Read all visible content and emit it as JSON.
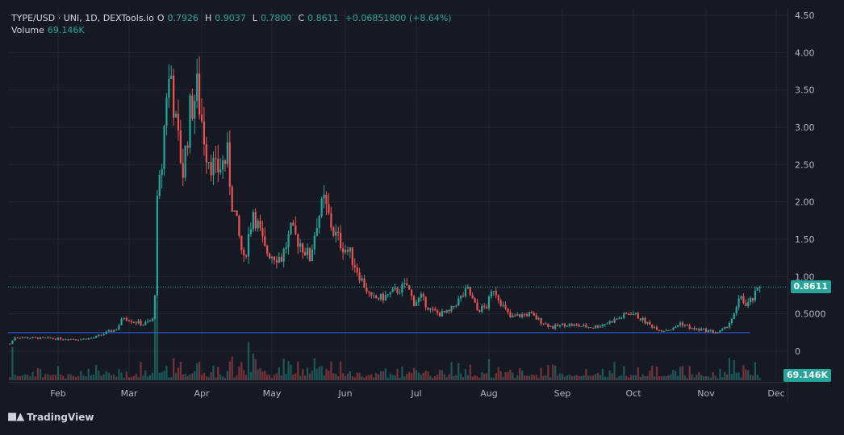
{
  "legend": {
    "symbol": "TYPE/USD · UNI, 1D, DEXTools.io",
    "open_label": "O",
    "open": "0.7926",
    "high_label": "H",
    "high": "0.9037",
    "low_label": "L",
    "low": "0.7800",
    "close_label": "C",
    "close": "0.8611",
    "change": "+0.06851800 (+8.64%)",
    "volume_label": "Volume",
    "volume": "69.146K"
  },
  "price_tag": "0.8611",
  "volume_tag": "69.146K",
  "brand": "TradingView",
  "colors": {
    "background": "#151924",
    "grid": "#242833",
    "up": "#26a69a",
    "down": "#ef5350",
    "baseline": "#2962ff"
  },
  "chart_data": {
    "type": "candlestick",
    "x_axis_labels": [
      "Feb",
      "Mar",
      "Apr",
      "May",
      "Jun",
      "Jul",
      "Aug",
      "Sep",
      "Oct",
      "Nov",
      "Dec"
    ],
    "y_axis_labels": [
      "4.50",
      "4.00",
      "3.50",
      "3.00",
      "2.50",
      "2.00",
      "1.50",
      "1.00",
      "0.5000",
      "0"
    ],
    "ylim": [
      0,
      4.5
    ],
    "horizontal_line": 0.25,
    "last_price": 0.8611,
    "anchors": [
      {
        "date": "Jan 13",
        "close": 0.1
      },
      {
        "date": "Jan 15",
        "close": 0.19
      },
      {
        "date": "Jan 20",
        "close": 0.18
      },
      {
        "date": "Feb 10",
        "close": 0.16
      },
      {
        "date": "Feb 15",
        "close": 0.18
      },
      {
        "date": "Feb 24",
        "close": 0.3
      },
      {
        "date": "Feb 27",
        "close": 0.46
      },
      {
        "date": "Mar 3",
        "close": 0.4
      },
      {
        "date": "Mar 7",
        "close": 0.36
      },
      {
        "date": "Mar 11",
        "close": 0.42
      },
      {
        "date": "Mar 12",
        "close": 0.8
      },
      {
        "date": "Mar 13",
        "close": 1.95
      },
      {
        "date": "Mar 15",
        "close": 2.5
      },
      {
        "date": "Mar 17",
        "close": 3.5
      },
      {
        "date": "Mar 19",
        "close": 3.7
      },
      {
        "date": "Mar 21",
        "close": 3.0
      },
      {
        "date": "Mar 24",
        "close": 2.4
      },
      {
        "date": "Mar 27",
        "close": 3.2
      },
      {
        "date": "Mar 30",
        "close": 3.5
      },
      {
        "date": "Apr 3",
        "close": 2.7
      },
      {
        "date": "Apr 7",
        "close": 2.4
      },
      {
        "date": "Apr 12",
        "close": 2.6
      },
      {
        "date": "Apr 14",
        "close": 2.0
      },
      {
        "date": "Apr 19",
        "close": 1.2
      },
      {
        "date": "Apr 23",
        "close": 1.9
      },
      {
        "date": "Apr 28",
        "close": 1.35
      },
      {
        "date": "May 1",
        "close": 1.3
      },
      {
        "date": "May 5",
        "close": 1.25
      },
      {
        "date": "May 9",
        "close": 1.6
      },
      {
        "date": "May 13",
        "close": 1.45
      },
      {
        "date": "May 17",
        "close": 1.25
      },
      {
        "date": "May 20",
        "close": 1.75
      },
      {
        "date": "May 23",
        "close": 2.0
      },
      {
        "date": "May 27",
        "close": 1.6
      },
      {
        "date": "May 30",
        "close": 1.45
      },
      {
        "date": "Jun 3",
        "close": 1.3
      },
      {
        "date": "Jun 8",
        "close": 0.95
      },
      {
        "date": "Jun 12",
        "close": 0.7
      },
      {
        "date": "Jun 17",
        "close": 0.72
      },
      {
        "date": "Jun 22",
        "close": 0.8
      },
      {
        "date": "Jun 27",
        "close": 0.88
      },
      {
        "date": "Jun 30",
        "close": 0.65
      },
      {
        "date": "Jul 3",
        "close": 0.72
      },
      {
        "date": "Jul 7",
        "close": 0.55
      },
      {
        "date": "Jul 11",
        "close": 0.5
      },
      {
        "date": "Jul 15",
        "close": 0.52
      },
      {
        "date": "Jul 18",
        "close": 0.65
      },
      {
        "date": "Jul 23",
        "close": 0.82
      },
      {
        "date": "Jul 27",
        "close": 0.55
      },
      {
        "date": "Jul 31",
        "close": 0.6
      },
      {
        "date": "Aug 3",
        "close": 0.85
      },
      {
        "date": "Aug 7",
        "close": 0.6
      },
      {
        "date": "Aug 10",
        "close": 0.45
      },
      {
        "date": "Aug 14",
        "close": 0.48
      },
      {
        "date": "Aug 18",
        "close": 0.5
      },
      {
        "date": "Aug 24",
        "close": 0.38
      },
      {
        "date": "Aug 28",
        "close": 0.32
      },
      {
        "date": "Sep 2",
        "close": 0.36
      },
      {
        "date": "Sep 8",
        "close": 0.34
      },
      {
        "date": "Sep 14",
        "close": 0.32
      },
      {
        "date": "Sep 20",
        "close": 0.38
      },
      {
        "date": "Sep 26",
        "close": 0.46
      },
      {
        "date": "Sep 30",
        "close": 0.52
      },
      {
        "date": "Oct 3",
        "close": 0.46
      },
      {
        "date": "Oct 8",
        "close": 0.35
      },
      {
        "date": "Oct 13",
        "close": 0.28
      },
      {
        "date": "Oct 18",
        "close": 0.3
      },
      {
        "date": "Oct 21",
        "close": 0.38
      },
      {
        "date": "Oct 26",
        "close": 0.3
      },
      {
        "date": "Nov 1",
        "close": 0.28
      },
      {
        "date": "Nov 6",
        "close": 0.25
      },
      {
        "date": "Nov 9",
        "close": 0.3
      },
      {
        "date": "Nov 13",
        "close": 0.48
      },
      {
        "date": "Nov 16",
        "close": 0.75
      },
      {
        "date": "Nov 18",
        "close": 0.6
      },
      {
        "date": "Nov 21",
        "close": 0.7
      },
      {
        "date": "Nov 24",
        "close": 0.86
      }
    ]
  }
}
